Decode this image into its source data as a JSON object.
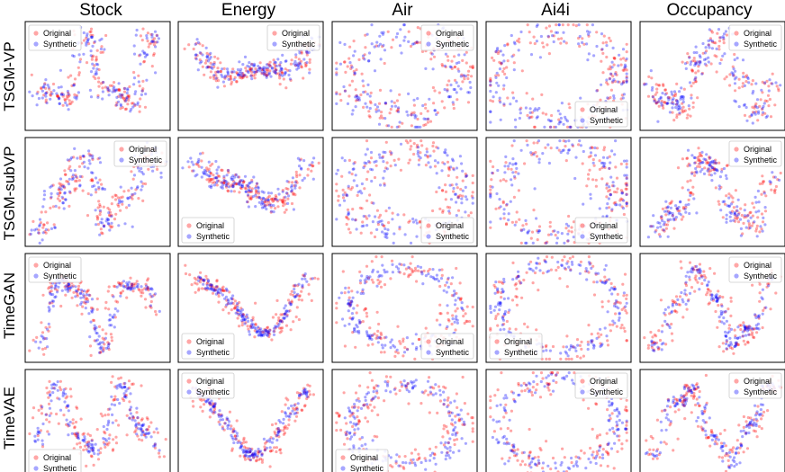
{
  "column_titles": [
    "Stock",
    "Energy",
    "Air",
    "Ai4i",
    "Occupancy"
  ],
  "row_titles": [
    "TSGM-VP",
    "TSGM-subVP",
    "TimeGAN",
    "TimeVAE"
  ],
  "colors": {
    "original": "#ff0000",
    "synthetic": "#0000ff"
  },
  "chart_data": {
    "type": "scatter",
    "title": "",
    "xlabel": "",
    "ylabel": "",
    "axis_ticks": "hidden",
    "grid": false,
    "series": [
      {
        "name": "Original",
        "color": "#ff0000"
      },
      {
        "name": "Synthetic",
        "color": "#0000ff"
      }
    ],
    "panels": [
      {
        "row": "TSGM-VP",
        "column": "Stock",
        "legend": "top-left"
      },
      {
        "row": "TSGM-VP",
        "column": "Energy",
        "legend": "top-right"
      },
      {
        "row": "TSGM-VP",
        "column": "Air",
        "legend": "top-right"
      },
      {
        "row": "TSGM-VP",
        "column": "Ai4i",
        "legend": "bottom-right"
      },
      {
        "row": "TSGM-VP",
        "column": "Occupancy",
        "legend": "top-right"
      },
      {
        "row": "TSGM-subVP",
        "column": "Stock",
        "legend": "top-right"
      },
      {
        "row": "TSGM-subVP",
        "column": "Energy",
        "legend": "bottom-left"
      },
      {
        "row": "TSGM-subVP",
        "column": "Air",
        "legend": "bottom-right"
      },
      {
        "row": "TSGM-subVP",
        "column": "Ai4i",
        "legend": "bottom-right"
      },
      {
        "row": "TSGM-subVP",
        "column": "Occupancy",
        "legend": "top-right"
      },
      {
        "row": "TimeGAN",
        "column": "Stock",
        "legend": "top-left"
      },
      {
        "row": "TimeGAN",
        "column": "Energy",
        "legend": "bottom-left"
      },
      {
        "row": "TimeGAN",
        "column": "Air",
        "legend": "bottom-right"
      },
      {
        "row": "TimeGAN",
        "column": "Ai4i",
        "legend": "bottom-left"
      },
      {
        "row": "TimeGAN",
        "column": "Occupancy",
        "legend": "top-right"
      },
      {
        "row": "TimeVAE",
        "column": "Stock",
        "legend": "bottom-left"
      },
      {
        "row": "TimeVAE",
        "column": "Energy",
        "legend": "top-left"
      },
      {
        "row": "TimeVAE",
        "column": "Air",
        "legend": "bottom-left"
      },
      {
        "row": "TimeVAE",
        "column": "Ai4i",
        "legend": "top-right"
      },
      {
        "row": "TimeVAE",
        "column": "Occupancy",
        "legend": "top-right"
      }
    ]
  }
}
